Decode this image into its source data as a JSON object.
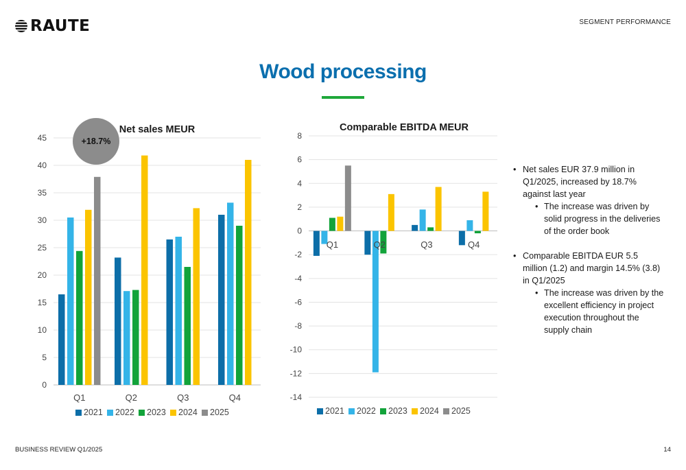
{
  "header": {
    "logo_text": "RAUTE",
    "section_label": "SEGMENT PERFORMANCE",
    "title": "Wood processing"
  },
  "footer": {
    "left": "BUSINESS REVIEW Q1/2025",
    "page_number": "14"
  },
  "colors": {
    "accent_title": "#0b6fae",
    "accent_bar": "#1fa83a",
    "series": {
      "2021": "#0c6ea8",
      "2022": "#34b4e8",
      "2023": "#12a33a",
      "2024": "#fbc400",
      "2025": "#8c8c8c"
    }
  },
  "badge": {
    "text": "+18.7%"
  },
  "bullets": [
    {
      "text": "Net sales EUR 37.9 million in Q1/2025, increased by 18.7% against last year",
      "sub": [
        "The increase was driven by solid progress in the deliveries of the order book"
      ]
    },
    {
      "text": "Comparable EBITDA EUR 5.5 million (1.2) and margin 14.5% (3.8) in Q1/2025",
      "sub": [
        "The increase was driven by the excellent efficiency in project execution throughout the supply chain"
      ]
    }
  ],
  "chart_data": [
    {
      "type": "bar",
      "title": "Net sales MEUR",
      "categories": [
        "Q1",
        "Q2",
        "Q3",
        "Q4"
      ],
      "series": [
        {
          "name": "2021",
          "values": [
            16.5,
            23.2,
            26.5,
            31.0
          ]
        },
        {
          "name": "2022",
          "values": [
            30.5,
            17.1,
            27.0,
            33.2
          ]
        },
        {
          "name": "2023",
          "values": [
            24.4,
            17.3,
            21.5,
            29.0
          ]
        },
        {
          "name": "2024",
          "values": [
            31.9,
            41.8,
            32.2,
            41.0
          ]
        },
        {
          "name": "2025",
          "values": [
            37.9,
            null,
            null,
            null
          ]
        }
      ],
      "ylim": [
        0,
        45
      ],
      "yticks": [
        0,
        5,
        10,
        15,
        20,
        25,
        30,
        35,
        40,
        45
      ],
      "grid": true,
      "legend": "bottom"
    },
    {
      "type": "bar",
      "title": "Comparable EBITDA MEUR",
      "categories": [
        "Q1",
        "Q2",
        "Q3",
        "Q4"
      ],
      "series": [
        {
          "name": "2021",
          "values": [
            -2.1,
            -2.0,
            0.5,
            -1.2
          ]
        },
        {
          "name": "2022",
          "values": [
            -1.1,
            -11.9,
            1.8,
            0.9
          ]
        },
        {
          "name": "2023",
          "values": [
            1.1,
            -1.9,
            0.3,
            -0.2
          ]
        },
        {
          "name": "2024",
          "values": [
            1.2,
            3.1,
            3.7,
            3.3
          ]
        },
        {
          "name": "2025",
          "values": [
            5.5,
            null,
            null,
            null
          ]
        }
      ],
      "ylim": [
        -14,
        8
      ],
      "yticks": [
        -14,
        -12,
        -10,
        -8,
        -6,
        -4,
        -2,
        0,
        2,
        4,
        6,
        8
      ],
      "grid": true,
      "legend": "bottom"
    }
  ]
}
